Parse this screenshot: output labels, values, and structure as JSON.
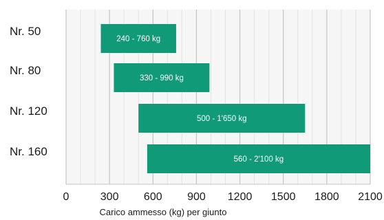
{
  "chart_data": {
    "type": "bar",
    "orientation": "horizontal",
    "categories": [
      "Nr. 50",
      "Nr. 80",
      "Nr. 120",
      "Nr. 160"
    ],
    "ranges": [
      [
        240,
        760
      ],
      [
        330,
        990
      ],
      [
        500,
        1650
      ],
      [
        560,
        2100
      ]
    ],
    "bar_labels": [
      "240 - 760 kg",
      "330 - 990 kg",
      "500 - 1'650 kg",
      "560 - 2'100 kg"
    ],
    "xlabel": "Carico ammesso (kg) per giunto",
    "xlim": [
      0,
      2100
    ],
    "xticks": [
      0,
      300,
      600,
      900,
      1200,
      1500,
      1800,
      2100
    ],
    "xtick_labels": [
      "0",
      "300",
      "600",
      "900",
      "1200",
      "1500",
      "1800",
      "2100"
    ],
    "minor_grid_step": 100,
    "grid": true,
    "colors": {
      "bar": "#109a78",
      "bar_label": "#ffffff",
      "major_grid": "#c4c4c4",
      "minor_grid": "#e2e2e2",
      "plot_background": "#f6f6f6",
      "text": "#1a1a1a"
    }
  }
}
